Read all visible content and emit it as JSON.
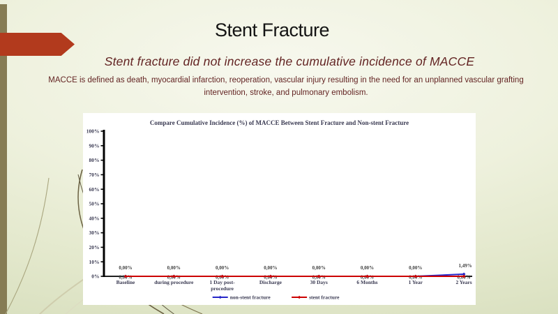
{
  "slide": {
    "title": "Stent Fracture",
    "subtitle": "Stent fracture did not increase the cumulative incidence of MACCE",
    "body_line1": "MACCE is defined as death, myocardial infarction, reoperation, vascular injury resulting in the need for an unplanned vascular grafting",
    "body_line2": "intervention, stroke, and  pulmonary embolism."
  },
  "colors": {
    "accent_red": "#b23a1d",
    "left_bar_olive": "#867c54",
    "maroon_text": "#632423",
    "chart_text": "#3a3a52",
    "axis_black": "#000000",
    "non_stent_blue": "#2525c8",
    "stent_red": "#cc0000"
  },
  "chart_data": {
    "type": "line",
    "title": "Compare Cumulative Incidence (%) of MACCE Between Stent Fracture and Non-stent Fracture",
    "categories": [
      "Baseline",
      "during procedure",
      "1 Day post-procedure",
      "Discharge",
      "30 Days",
      "6 Months",
      "1 Year",
      "2 Years"
    ],
    "series": [
      {
        "name": "non-stent fracture",
        "color": "#2525c8",
        "values": [
          0.0,
          0.0,
          0.0,
          0.0,
          0.0,
          0.0,
          0.0,
          1.49
        ],
        "labels": [
          "0,00%",
          "0,00%",
          "0,00%",
          "0,00%",
          "0,00%",
          "0,00%",
          "0,00%",
          "1,49%"
        ]
      },
      {
        "name": "stent fracture",
        "color": "#cc0000",
        "values": [
          0.0,
          0.0,
          0.0,
          0.0,
          0.0,
          0.0,
          0.0,
          0.0
        ],
        "labels": [
          "0,00%",
          "0,00%",
          "0,00%",
          "0,00%",
          "0,00%",
          "0,00%",
          "0,00%",
          "0,00%"
        ]
      }
    ],
    "xlabel": "",
    "ylabel": "",
    "ylim": [
      0,
      100
    ],
    "ytick_step": 10,
    "ytick_labels": [
      "0%",
      "10%",
      "20%",
      "30%",
      "40%",
      "50%",
      "60%",
      "70%",
      "80%",
      "90%",
      "100%"
    ],
    "grid": false,
    "legend_position": "bottom"
  }
}
